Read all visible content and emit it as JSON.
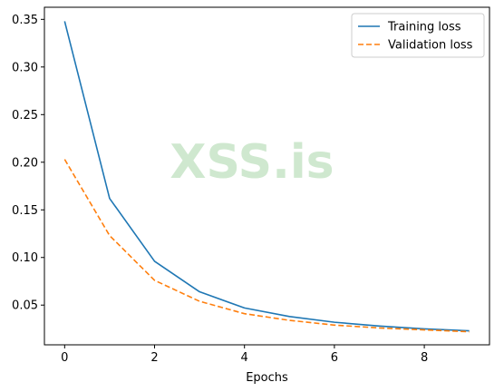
{
  "chart_data": {
    "type": "line",
    "title": "",
    "xlabel": "Epochs",
    "ylabel": "",
    "x": [
      0,
      1,
      2,
      3,
      4,
      5,
      6,
      7,
      8,
      9
    ],
    "xlim": [
      -0.45,
      9.45
    ],
    "ylim": [
      0.0083,
      0.3627
    ],
    "xticks": [
      0,
      2,
      4,
      6,
      8
    ],
    "xtick_labels": [
      "0",
      "2",
      "4",
      "6",
      "8"
    ],
    "yticks": [
      0.05,
      0.1,
      0.15,
      0.2,
      0.25,
      0.3,
      0.35
    ],
    "ytick_labels": [
      "0.05",
      "0.10",
      "0.15",
      "0.20",
      "0.25",
      "0.30",
      "0.35"
    ],
    "grid": false,
    "legend_position": "top-right",
    "series": [
      {
        "name": "Training loss",
        "color": "#1f77b4",
        "style": "solid",
        "values": [
          0.348,
          0.162,
          0.096,
          0.064,
          0.047,
          0.038,
          0.032,
          0.028,
          0.025,
          0.023
        ]
      },
      {
        "name": "Validation loss",
        "color": "#ff7f0e",
        "style": "dashed",
        "values": [
          0.203,
          0.123,
          0.076,
          0.054,
          0.041,
          0.034,
          0.029,
          0.026,
          0.024,
          0.022
        ]
      }
    ]
  },
  "watermark": {
    "text": "XSS.is"
  }
}
